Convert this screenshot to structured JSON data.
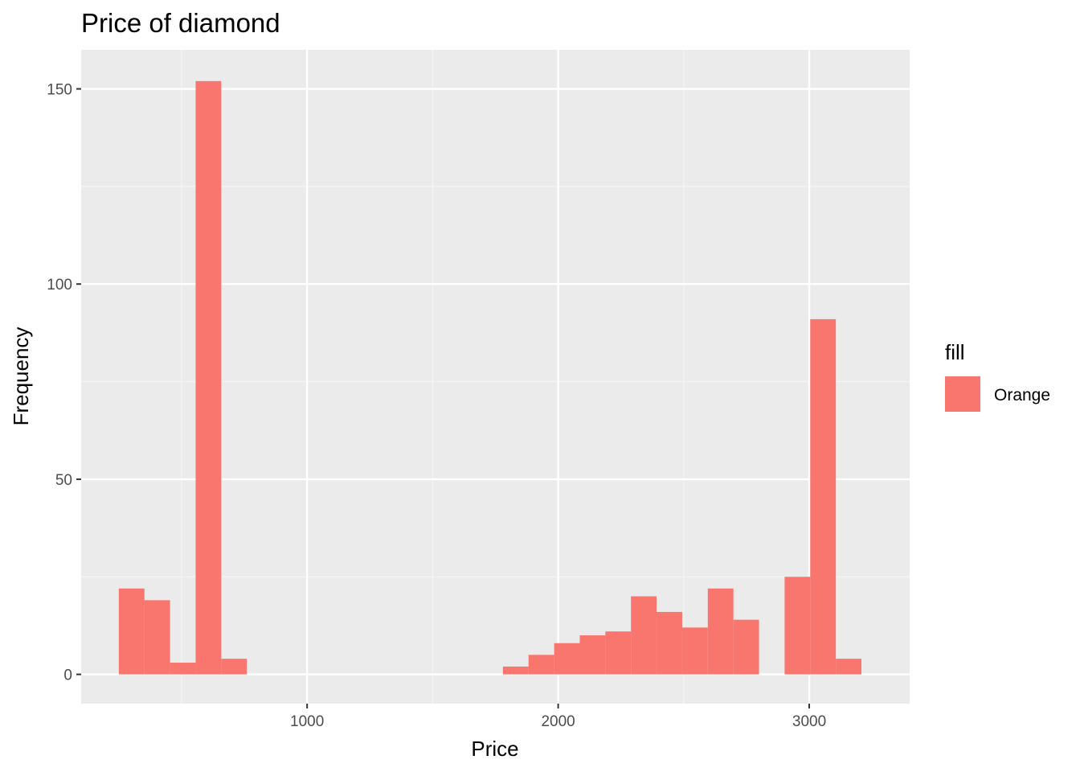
{
  "chart_data": {
    "type": "bar",
    "title": "Price of diamond",
    "xlabel": "Price",
    "ylabel": "Frequency",
    "xlim": [
      100,
      3400
    ],
    "ylim": [
      -7.5,
      160
    ],
    "x_ticks": [
      1000,
      2000,
      3000
    ],
    "x_tick_labels": [
      "1000",
      "2000",
      "3000"
    ],
    "y_ticks": [
      0,
      50,
      100,
      150
    ],
    "y_tick_labels": [
      "0",
      "50",
      "100",
      "150"
    ],
    "grid": true,
    "bin_width": 102,
    "bins": [
      {
        "x0": 250,
        "x1": 352,
        "count": 22
      },
      {
        "x0": 352,
        "x1": 454,
        "count": 19
      },
      {
        "x0": 454,
        "x1": 556,
        "count": 3
      },
      {
        "x0": 556,
        "x1": 658,
        "count": 152
      },
      {
        "x0": 658,
        "x1": 760,
        "count": 4
      },
      {
        "x0": 1780,
        "x1": 1882,
        "count": 2
      },
      {
        "x0": 1882,
        "x1": 1984,
        "count": 5
      },
      {
        "x0": 1984,
        "x1": 2086,
        "count": 8
      },
      {
        "x0": 2086,
        "x1": 2188,
        "count": 10
      },
      {
        "x0": 2188,
        "x1": 2290,
        "count": 11
      },
      {
        "x0": 2290,
        "x1": 2392,
        "count": 20
      },
      {
        "x0": 2392,
        "x1": 2494,
        "count": 16
      },
      {
        "x0": 2494,
        "x1": 2596,
        "count": 12
      },
      {
        "x0": 2596,
        "x1": 2698,
        "count": 22
      },
      {
        "x0": 2698,
        "x1": 2800,
        "count": 14
      },
      {
        "x0": 2902,
        "x1": 3004,
        "count": 25
      },
      {
        "x0": 3004,
        "x1": 3106,
        "count": 91
      },
      {
        "x0": 3106,
        "x1": 3208,
        "count": 4
      }
    ],
    "fill_color": "#F8766D",
    "legend": {
      "title": "fill",
      "position": "right",
      "entries": [
        {
          "label": "Orange",
          "color": "#F8766D"
        }
      ]
    }
  },
  "colors": {
    "panel_bg": "#EBEBEB",
    "grid_major": "#FFFFFF",
    "grid_minor": "#F5F5F5",
    "tick_text": "#4D4D4D",
    "tick_mark": "#333333"
  }
}
